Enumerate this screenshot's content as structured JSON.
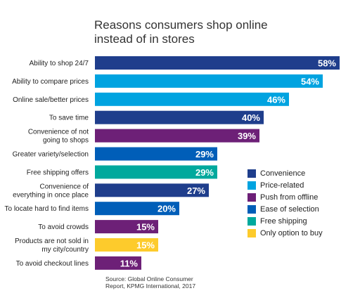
{
  "title_line1": "Reasons consumers shop online",
  "title_line2": "instead of in stores",
  "source_line1": "Source: Global Online Consumer",
  "source_line2": "Report, KPMG International, 2017",
  "colors": {
    "Convenience": "#1f3e8c",
    "Price-related": "#00a3e0",
    "Push from offline": "#6d2077",
    "Ease of selection": "#005eb8",
    "Free shipping": "#00a99d",
    "Only option to buy": "#fdcb2c"
  },
  "chart_data": {
    "type": "bar",
    "orientation": "horizontal",
    "title": "Reasons consumers shop online instead of in stores",
    "value_format": "percent",
    "xlim": [
      0,
      60
    ],
    "categories": [
      [
        "Ability to shop 24/7"
      ],
      [
        "Ability to compare prices"
      ],
      [
        "Online sale/better prices"
      ],
      [
        "To save time"
      ],
      [
        "Convenience of not",
        "going to shops"
      ],
      [
        "Greater variety/selection"
      ],
      [
        "Free shipping offers"
      ],
      [
        "Convenience of",
        "everything in once place"
      ],
      [
        "To locate hard to find items"
      ],
      [
        "To avoid crowds"
      ],
      [
        "Products are not sold in",
        "my city/country"
      ],
      [
        "To avoid checkout lines"
      ]
    ],
    "values": [
      58,
      54,
      46,
      40,
      39,
      29,
      29,
      27,
      20,
      15,
      15,
      11
    ],
    "value_labels": [
      "58%",
      "54%",
      "46%",
      "40%",
      "39%",
      "29%",
      "29%",
      "27%",
      "20%",
      "15%",
      "15%",
      "11%"
    ],
    "groups": [
      "Convenience",
      "Price-related",
      "Price-related",
      "Convenience",
      "Push from offline",
      "Ease of selection",
      "Free shipping",
      "Convenience",
      "Ease of selection",
      "Push from offline",
      "Only option to buy",
      "Push from offline"
    ],
    "legend": [
      "Convenience",
      "Price-related",
      "Push from offline",
      "Ease of selection",
      "Free shipping",
      "Only option to buy"
    ],
    "legend_position": "right"
  }
}
